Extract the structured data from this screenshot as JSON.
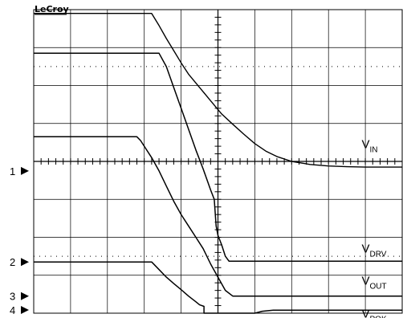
{
  "app": {
    "brand": "LeCroy"
  },
  "colors": {
    "background": "#ffffff",
    "grid": "#000000",
    "trace": "#000000"
  },
  "chart_data": {
    "type": "line",
    "grid": true,
    "x_divisions": 10,
    "y_divisions": 8,
    "xlim": [
      0,
      10
    ],
    "ylim": [
      0,
      8
    ],
    "ground_markers": [
      {
        "label": "1",
        "level": 3.75
      },
      {
        "label": "2",
        "level": 1.35
      },
      {
        "label": "3",
        "level": 0.45
      },
      {
        "label": "4",
        "level": 0.0
      }
    ],
    "series": [
      {
        "label_main": "V",
        "label_sub": "IN",
        "label_at": [
          8.9,
          4.35
        ],
        "x": [
          0,
          3.2,
          3.4,
          3.6,
          3.8,
          4.0,
          4.2,
          4.5,
          4.8,
          5.1,
          5.4,
          5.7,
          6.0,
          6.3,
          6.6,
          7.0,
          7.5,
          8.0,
          8.5,
          9.0,
          10
        ],
        "y": [
          7.9,
          7.9,
          7.58,
          7.24,
          6.92,
          6.6,
          6.3,
          5.95,
          5.6,
          5.25,
          4.98,
          4.72,
          4.47,
          4.27,
          4.13,
          4.0,
          3.92,
          3.88,
          3.86,
          3.85,
          3.85
        ]
      },
      {
        "label_main": "V",
        "label_sub": "DRV",
        "label_at": [
          8.9,
          1.6
        ],
        "x": [
          0,
          3.4,
          3.6,
          3.8,
          4.0,
          4.2,
          4.4,
          4.6,
          4.8,
          4.9,
          4.95,
          5.0,
          5.1,
          5.2,
          5.3,
          10
        ],
        "y": [
          6.85,
          6.85,
          6.5,
          5.95,
          5.4,
          4.85,
          4.3,
          3.8,
          3.25,
          3.0,
          2.3,
          2.05,
          1.8,
          1.5,
          1.37,
          1.37
        ]
      },
      {
        "label_main": "V",
        "label_sub": "OUT",
        "label_at": [
          8.9,
          0.75
        ],
        "x": [
          0,
          1.5,
          2.8,
          2.9,
          3.0,
          3.2,
          3.4,
          3.6,
          3.8,
          4.0,
          4.2,
          4.4,
          4.6,
          4.8,
          5.0,
          5.2,
          5.4,
          10
        ],
        "y": [
          4.65,
          4.65,
          4.65,
          4.55,
          4.4,
          4.1,
          3.75,
          3.35,
          2.95,
          2.6,
          2.3,
          2.0,
          1.7,
          1.3,
          0.95,
          0.6,
          0.45,
          0.45
        ]
      },
      {
        "label_main": "V",
        "label_sub": "POK",
        "label_at": [
          8.9,
          -0.12
        ],
        "x": [
          0,
          3.2,
          3.4,
          3.6,
          3.8,
          4.0,
          4.2,
          4.4,
          4.5,
          4.62,
          4.62,
          6.0,
          6.2,
          6.5,
          7.0,
          10
        ],
        "y": [
          1.35,
          1.35,
          1.15,
          0.95,
          0.78,
          0.62,
          0.45,
          0.3,
          0.22,
          0.18,
          0.0,
          0.0,
          0.05,
          0.08,
          0.08,
          0.08
        ]
      }
    ]
  }
}
